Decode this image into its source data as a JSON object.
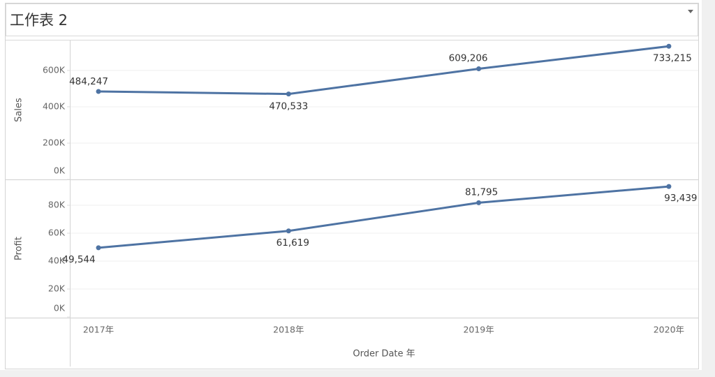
{
  "title": "工作表 2",
  "chart_data": [
    {
      "type": "line",
      "y_label": "Sales",
      "series": [
        {
          "color": "#4e73a3",
          "values": [
            484247,
            470533,
            609206,
            733215
          ],
          "value_labels": [
            "484,247",
            "470,533",
            "609,206",
            "733,215"
          ]
        }
      ],
      "ylim": [
        0,
        765000
      ],
      "yticks": [
        {
          "value": 0,
          "label": "0K"
        },
        {
          "value": 200000,
          "label": "200K"
        },
        {
          "value": 400000,
          "label": "400K"
        },
        {
          "value": 600000,
          "label": "600K"
        }
      ],
      "grid": true
    },
    {
      "type": "line",
      "y_label": "Profit",
      "x_label": "Order Date 年",
      "categories": [
        "2017年",
        "2018年",
        "2019年",
        "2020年"
      ],
      "series": [
        {
          "color": "#4e73a3",
          "values": [
            49544,
            61619,
            81795,
            93439
          ],
          "value_labels": [
            "49,544",
            "61,619",
            "81,795",
            "93,439"
          ]
        }
      ],
      "ylim": [
        0,
        98000
      ],
      "yticks": [
        {
          "value": 0,
          "label": "0K"
        },
        {
          "value": 20000,
          "label": "20K"
        },
        {
          "value": 40000,
          "label": "40K"
        },
        {
          "value": 60000,
          "label": "60K"
        },
        {
          "value": 80000,
          "label": "80K"
        }
      ],
      "grid": true
    }
  ]
}
